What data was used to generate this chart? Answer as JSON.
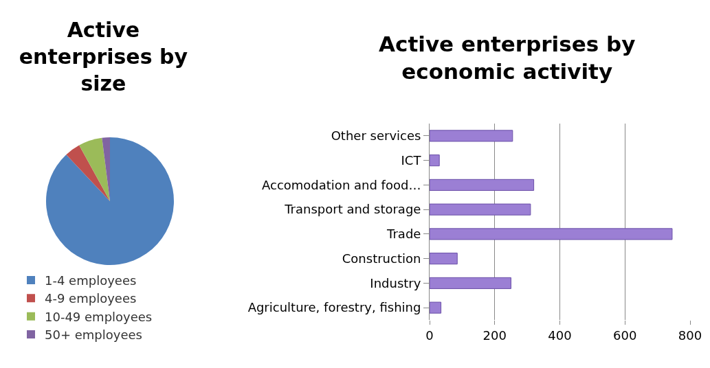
{
  "chart_data": [
    {
      "type": "pie",
      "title": "Active\nenterprises by\nsize",
      "categories": [
        "1-4 employees",
        "4-9 employees",
        "10-49 employees",
        "50+ employees"
      ],
      "values": [
        88,
        4,
        6,
        2
      ],
      "colors": [
        "#4f81bd",
        "#c0504d",
        "#9bbb59",
        "#8064a2"
      ],
      "legend": "bottom left"
    },
    {
      "type": "bar",
      "title": "Active enterprises by\neconomic activity",
      "orientation": "horizontal",
      "categories": [
        "Other services",
        "ICT",
        "Accomodation and food…",
        "Transport and storage",
        "Trade",
        "Construction",
        "Industry",
        "Agriculture, forestry, fishing"
      ],
      "values": [
        255,
        30,
        320,
        310,
        745,
        85,
        250,
        35
      ],
      "color": "#9b7fd4",
      "xlim": [
        0,
        800
      ],
      "xticks": [
        0,
        200,
        400,
        600,
        800
      ],
      "grid": "x",
      "legend": false
    }
  ]
}
